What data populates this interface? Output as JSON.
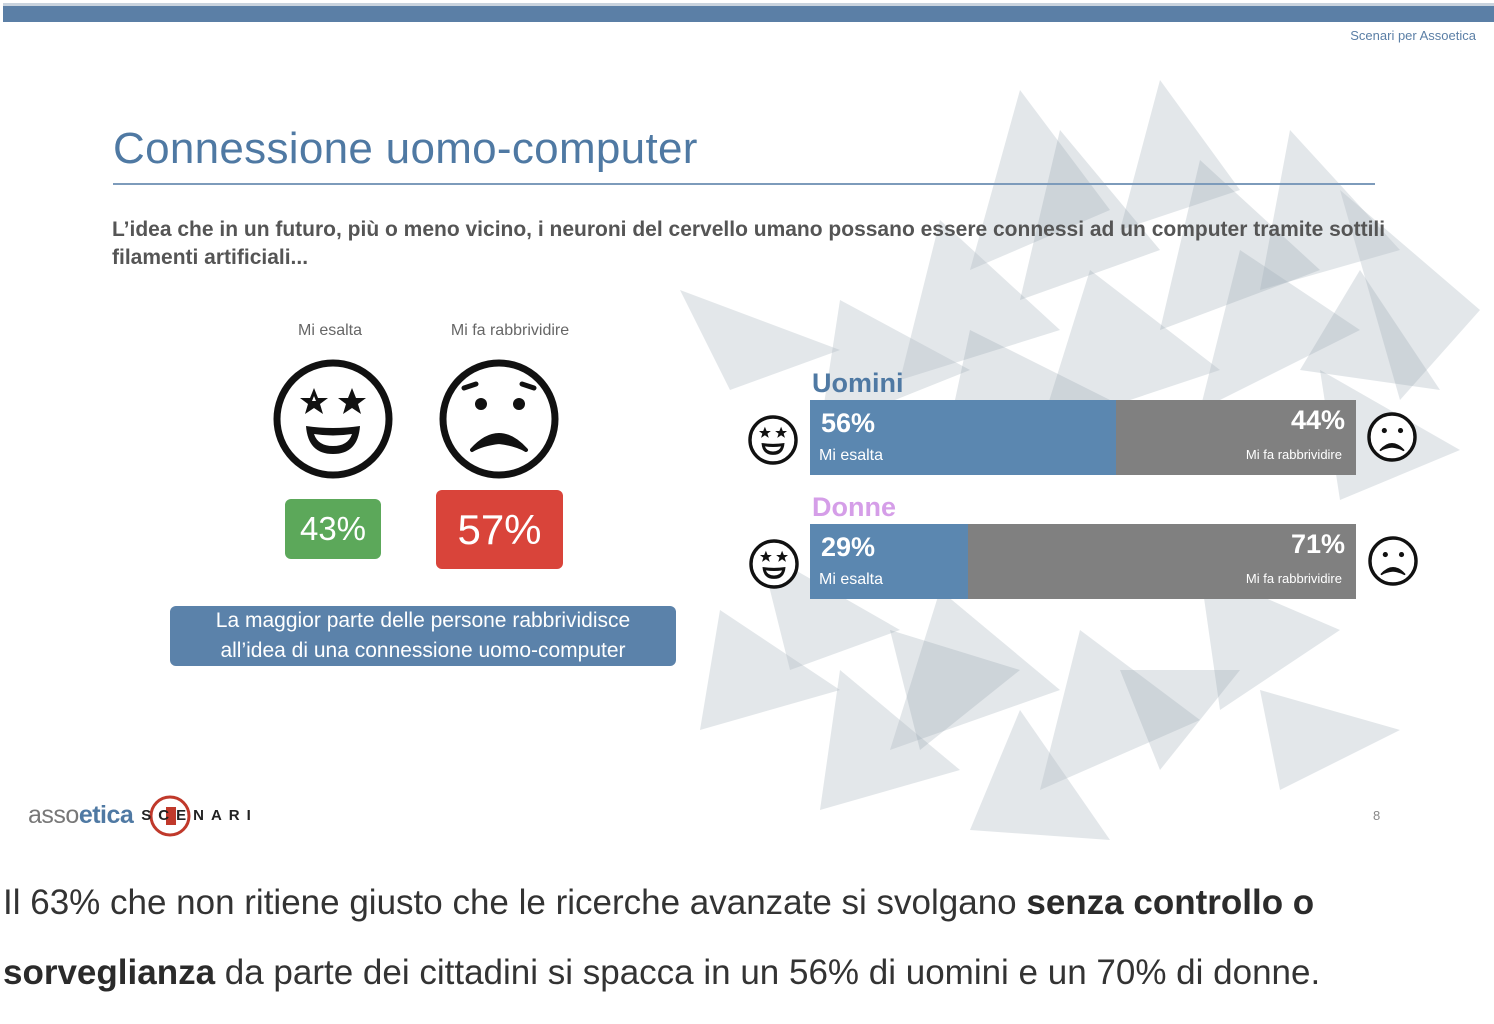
{
  "slide": {
    "header_label": "Scenari per Assoetica",
    "title": "Connessione uomo-computer",
    "intro_text": "L’idea che in un futuro, più o meno vicino, i neuroni del cervello umano possano essere connessi ad un computer tramite sottili filamenti artificiali...",
    "columns": [
      {
        "label": "Mi esalta",
        "percent": "43%",
        "icon": "star-eyes-face-icon"
      },
      {
        "label": "Mi fa rabbrividire",
        "percent": "57%",
        "icon": "frowning-face-icon"
      }
    ],
    "callout_line1": "La maggior parte delle persone rabbrividisce",
    "callout_line2": "all’idea di una connessione uomo-computer",
    "groups": [
      {
        "label": "Uomini",
        "label_color": "#4f79a3",
        "left_pct": "56%",
        "left_label": "Mi esalta",
        "right_pct": "44%",
        "right_label": "Mi fa rabbrividire",
        "fill": 0.56
      },
      {
        "label": "Donne",
        "label_color": "#d59ee8",
        "left_pct": "29%",
        "left_label": "Mi esalta",
        "right_pct": "71%",
        "right_label": "Mi fa rabbrividire",
        "fill": 0.29
      }
    ],
    "logo_asso": "asso",
    "logo_etica": "etica",
    "logo_scenari": "SCENARI",
    "page_number": "8"
  },
  "colors": {
    "accent": "#4f79a3",
    "green": "#5ca85a",
    "red": "#d9443a",
    "bar_blue": "#5b87b0",
    "bar_gray": "#808080"
  },
  "article": {
    "part1": "Il 63% che non ritiene giusto che le ricerche avanzate si svolgano ",
    "bold": "senza controllo o sorveglianza",
    "part2": " da parte dei cittadini si spacca in un 56% di uomini e un 70% di donne."
  }
}
